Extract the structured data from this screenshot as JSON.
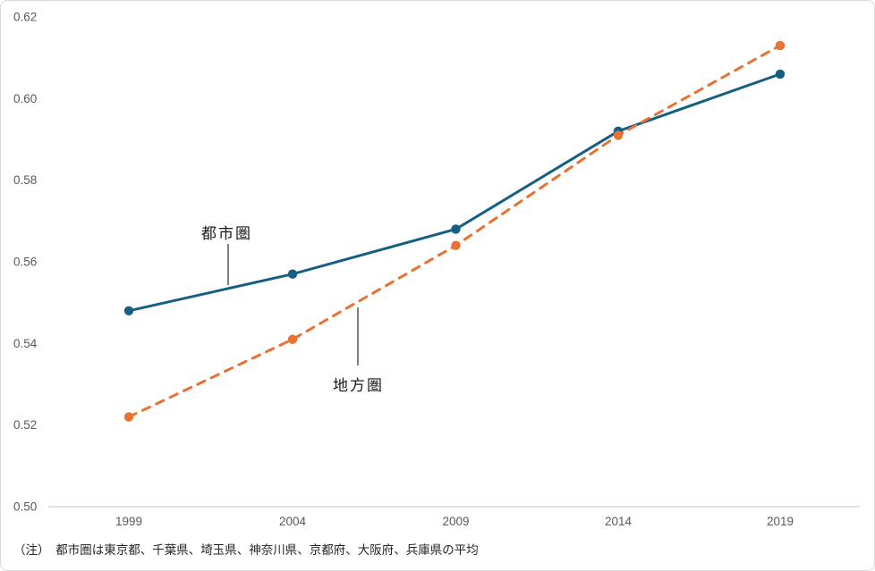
{
  "chart_data": {
    "type": "line",
    "x": [
      1999,
      2004,
      2009,
      2014,
      2019
    ],
    "xtick_labels": [
      "1999",
      "2004",
      "2009",
      "2014",
      "2019"
    ],
    "ytick_labels": [
      "0.50",
      "0.52",
      "0.54",
      "0.56",
      "0.58",
      "0.60",
      "0.62"
    ],
    "ylim": [
      0.5,
      0.62
    ],
    "ytick_step": 0.02,
    "grid": false,
    "legend_position": "inline-annotations",
    "title": "",
    "xlabel": "",
    "ylabel": "",
    "series": [
      {
        "name": "都市圏",
        "values": [
          0.548,
          0.557,
          0.568,
          0.592,
          0.606
        ],
        "color": "#156082",
        "line_style": "solid"
      },
      {
        "name": "地方圏",
        "values": [
          0.522,
          0.541,
          0.564,
          0.591,
          0.613
        ],
        "color": "#E97132",
        "line_style": "dashed"
      }
    ]
  },
  "annotations": [
    {
      "label": "都市圏"
    },
    {
      "label": "地方圏"
    }
  ],
  "note": "（注）　都市圏は東京都、千葉県、埼玉県、神奈川県、京都府、大阪府、兵庫県の平均",
  "colors": {
    "urban_series": "#156082",
    "regional_series": "#E97132",
    "axis_line": "#d9d9d9",
    "tick_label": "#595959",
    "annotation_text": "#1a1a1a",
    "leader_line": "#000000",
    "background": "#ffffff",
    "frame_border": "#d9d9d9"
  }
}
